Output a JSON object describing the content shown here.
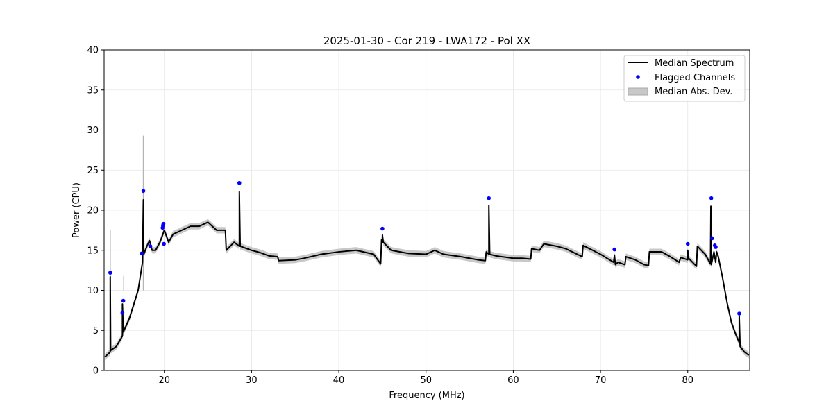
{
  "chart_data": {
    "type": "line",
    "title": "2025-01-30 - Cor 219 - LWA172 - Pol XX",
    "xlabel": "Frequency (MHz)",
    "ylabel": "Power (CPU)",
    "xlim": [
      13.1,
      87.1
    ],
    "ylim": [
      0,
      40
    ],
    "xticks": [
      20,
      30,
      40,
      50,
      60,
      70,
      80
    ],
    "yticks": [
      0,
      5,
      10,
      15,
      20,
      25,
      30,
      35,
      40
    ],
    "grid": true,
    "legend_position": "top-right",
    "legend": [
      "Median Spectrum",
      "Flagged Channels",
      "Median Abs. Dev."
    ],
    "colors": {
      "median": "#000000",
      "flagged": "#0000ff",
      "mad": "#c8c8c8"
    },
    "mad_halfwidth": 0.4,
    "mad_spikes": [
      [
        13.8,
        17.5
      ],
      [
        15.35,
        11.8
      ],
      [
        17.6,
        29.3
      ]
    ],
    "median_spectrum": [
      [
        13.2,
        1.7
      ],
      [
        13.8,
        2.3
      ],
      [
        13.8,
        11.7
      ],
      [
        13.85,
        2.5
      ],
      [
        14.5,
        3.0
      ],
      [
        15.2,
        4.3
      ],
      [
        15.2,
        8.3
      ],
      [
        15.3,
        4.8
      ],
      [
        16,
        6.5
      ],
      [
        17,
        10
      ],
      [
        17.5,
        13.5
      ],
      [
        17.6,
        21.3
      ],
      [
        17.65,
        14.5
      ],
      [
        18,
        15.5
      ],
      [
        18.3,
        16.2
      ],
      [
        18.6,
        15
      ],
      [
        19,
        15
      ],
      [
        19.5,
        16
      ],
      [
        20,
        17.5
      ],
      [
        20.5,
        16
      ],
      [
        21,
        17
      ],
      [
        22,
        17.5
      ],
      [
        23,
        18
      ],
      [
        24,
        18
      ],
      [
        25,
        18.5
      ],
      [
        26,
        17.5
      ],
      [
        27,
        17.5
      ],
      [
        27.1,
        15
      ],
      [
        28,
        16
      ],
      [
        28.6,
        15.5
      ],
      [
        28.6,
        22.3
      ],
      [
        28.7,
        15.5
      ],
      [
        30,
        15
      ],
      [
        31,
        14.7
      ],
      [
        32,
        14.3
      ],
      [
        33,
        14.2
      ],
      [
        33.1,
        13.7
      ],
      [
        35,
        13.8
      ],
      [
        36,
        14
      ],
      [
        38,
        14.5
      ],
      [
        40,
        14.8
      ],
      [
        42,
        15
      ],
      [
        44,
        14.5
      ],
      [
        44.8,
        13.3
      ],
      [
        44.9,
        16.3
      ],
      [
        45,
        16
      ],
      [
        45,
        16.9
      ],
      [
        45.1,
        16
      ],
      [
        46,
        15
      ],
      [
        48,
        14.6
      ],
      [
        50,
        14.5
      ],
      [
        51,
        15
      ],
      [
        52,
        14.5
      ],
      [
        54,
        14.2
      ],
      [
        56,
        13.8
      ],
      [
        56.8,
        13.7
      ],
      [
        56.9,
        14.8
      ],
      [
        57.2,
        14.5
      ],
      [
        57.2,
        20.6
      ],
      [
        57.3,
        14.5
      ],
      [
        58,
        14.3
      ],
      [
        60,
        14
      ],
      [
        61,
        14
      ],
      [
        62,
        13.9
      ],
      [
        62.1,
        15.2
      ],
      [
        63,
        15
      ],
      [
        63.5,
        15.8
      ],
      [
        65,
        15.5
      ],
      [
        66,
        15.2
      ],
      [
        67.9,
        14.2
      ],
      [
        68,
        15.6
      ],
      [
        70,
        14.5
      ],
      [
        71.5,
        13.5
      ],
      [
        71.6,
        14.4
      ],
      [
        71.7,
        13.2
      ],
      [
        72,
        13.5
      ],
      [
        72.8,
        13.2
      ],
      [
        72.9,
        14.2
      ],
      [
        74,
        13.8
      ],
      [
        75,
        13.2
      ],
      [
        75.5,
        13.1
      ],
      [
        75.6,
        14.8
      ],
      [
        77,
        14.8
      ],
      [
        78,
        14.2
      ],
      [
        79,
        13.5
      ],
      [
        79.2,
        14.1
      ],
      [
        80,
        13.8
      ],
      [
        80,
        15
      ],
      [
        80.1,
        14
      ],
      [
        81,
        13
      ],
      [
        81.1,
        15.5
      ],
      [
        82,
        14.5
      ],
      [
        82.6,
        13.3
      ],
      [
        82.65,
        20.5
      ],
      [
        82.7,
        13.2
      ],
      [
        83,
        14.8
      ],
      [
        83.2,
        13.5
      ],
      [
        83.3,
        14.8
      ],
      [
        83.5,
        14.2
      ],
      [
        84,
        11.5
      ],
      [
        84.5,
        8.5
      ],
      [
        85,
        6
      ],
      [
        85.5,
        4.5
      ],
      [
        85.9,
        3.5
      ],
      [
        85.9,
        6.8
      ],
      [
        86,
        3
      ],
      [
        86.5,
        2.3
      ],
      [
        87,
        1.9
      ]
    ],
    "flagged_channels": [
      [
        13.8,
        12.2
      ],
      [
        15.2,
        7.2
      ],
      [
        15.3,
        8.7
      ],
      [
        17.4,
        14.6
      ],
      [
        17.6,
        22.4
      ],
      [
        18.4,
        15.5
      ],
      [
        19.8,
        17.8
      ],
      [
        19.85,
        18.1
      ],
      [
        19.9,
        18.3
      ],
      [
        19.95,
        15.8
      ],
      [
        28.6,
        23.4
      ],
      [
        45.0,
        17.7
      ],
      [
        57.2,
        21.5
      ],
      [
        71.6,
        15.1
      ],
      [
        80.0,
        15.8
      ],
      [
        82.7,
        21.5
      ],
      [
        82.8,
        16.5
      ],
      [
        83.1,
        15.6
      ],
      [
        83.2,
        15.4
      ],
      [
        85.9,
        7.1
      ]
    ]
  }
}
